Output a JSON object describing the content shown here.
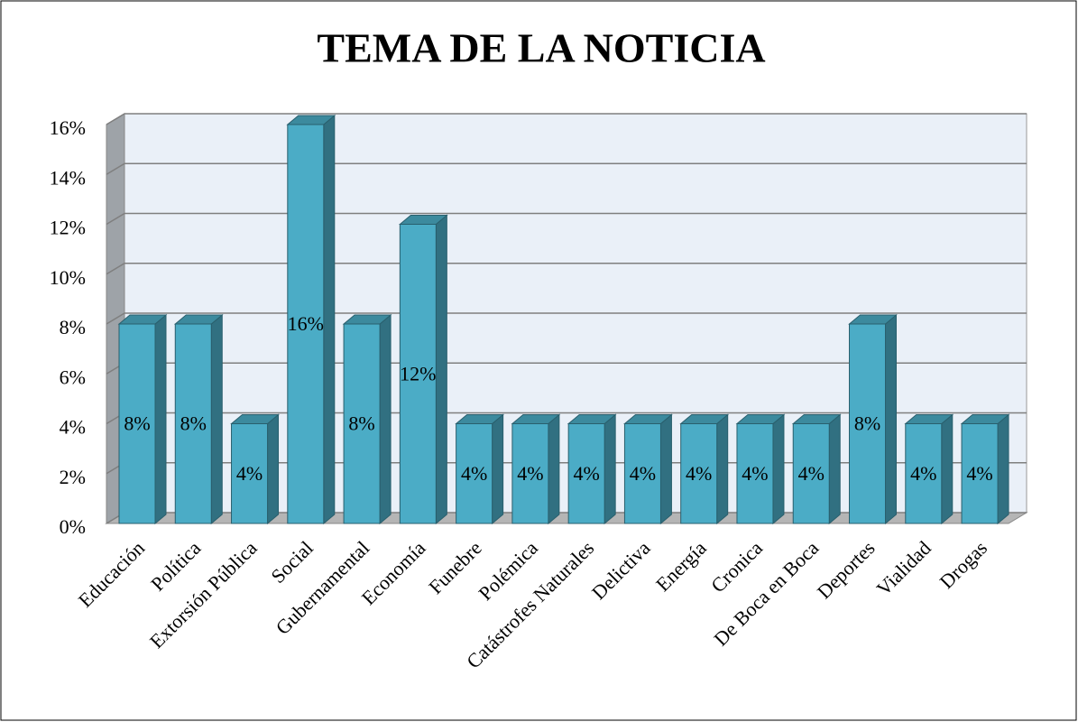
{
  "chart_data": {
    "type": "bar3d",
    "title": "TEMA DE LA NOTICIA",
    "categories": [
      "Educación",
      "Política",
      "Extorsión Pública",
      "Social",
      "Gubernamental",
      "Economía",
      "Funebre",
      "Polémica",
      "Catástrofes Naturales",
      "Delictiva",
      "Energía",
      "Cronica",
      "De Boca en Boca",
      "Deportes",
      "Vialidad",
      "Drogas"
    ],
    "values": [
      8,
      8,
      4,
      16,
      8,
      12,
      4,
      4,
      4,
      4,
      4,
      4,
      4,
      8,
      4,
      4
    ],
    "value_labels": [
      "8%",
      "8%",
      "4%",
      "16%",
      "8%",
      "12%",
      "4%",
      "4%",
      "4%",
      "4%",
      "4%",
      "4%",
      "4%",
      "8%",
      "4%",
      "4%"
    ],
    "color": "#4bacc6",
    "ylim": [
      0,
      16
    ],
    "yticks": [
      {
        "value": 0,
        "label": "0%"
      },
      {
        "value": 2,
        "label": "2%"
      },
      {
        "value": 4,
        "label": "4%"
      },
      {
        "value": 6,
        "label": "6%"
      },
      {
        "value": 8,
        "label": "8%"
      },
      {
        "value": 10,
        "label": "10%"
      },
      {
        "value": 12,
        "label": "12%"
      },
      {
        "value": 14,
        "label": "14%"
      },
      {
        "value": 16,
        "label": "16%"
      }
    ],
    "grid": true
  }
}
